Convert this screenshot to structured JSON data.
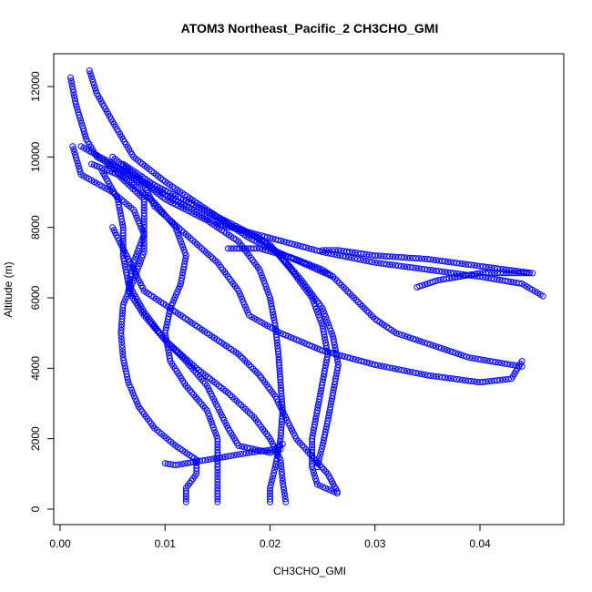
{
  "chart_data": {
    "type": "scatter",
    "title": "ATOM3 Northeast_Pacific_2 CH3CHO_GMI",
    "xlabel": "CH3CHO_GMI",
    "ylabel": "Altitude (m)",
    "xlim": [
      0,
      0.048
    ],
    "ylim": [
      0,
      12500
    ],
    "xticks": [
      "0.00",
      "0.01",
      "0.02",
      "0.03",
      "0.04"
    ],
    "yticks": [
      "0",
      "2000",
      "4000",
      "6000",
      "8000",
      "10000",
      "12000"
    ],
    "xtick_values": [
      0,
      0.01,
      0.02,
      0.03,
      0.04
    ],
    "ytick_values": [
      0,
      2000,
      4000,
      6000,
      8000,
      10000,
      12000
    ],
    "marker": "open-circle",
    "color": "#0000ff",
    "grid": false,
    "series": [
      {
        "values": [
          [
            0.0028,
            12450
          ],
          [
            0.0035,
            11800
          ],
          [
            0.005,
            11000
          ],
          [
            0.007,
            10000
          ],
          [
            0.01,
            9300
          ],
          [
            0.014,
            8500
          ],
          [
            0.018,
            7700
          ],
          [
            0.02,
            7400
          ],
          [
            0.023,
            7000
          ],
          [
            0.026,
            6600
          ],
          [
            0.028,
            6000
          ],
          [
            0.03,
            5400
          ],
          [
            0.032,
            5000
          ],
          [
            0.035,
            4700
          ],
          [
            0.039,
            4300
          ],
          [
            0.044,
            4050
          ]
        ]
      },
      {
        "values": [
          [
            0.001,
            12250
          ],
          [
            0.0015,
            11500
          ],
          [
            0.0025,
            10500
          ],
          [
            0.0035,
            10000
          ],
          [
            0.006,
            9600
          ],
          [
            0.009,
            9100
          ],
          [
            0.012,
            8600
          ],
          [
            0.015,
            8100
          ],
          [
            0.02,
            7700
          ],
          [
            0.025,
            7300
          ],
          [
            0.03,
            7000
          ],
          [
            0.035,
            6800
          ],
          [
            0.04,
            6600
          ],
          [
            0.044,
            6400
          ],
          [
            0.046,
            6050
          ]
        ]
      },
      {
        "values": [
          [
            0.002,
            10300
          ],
          [
            0.005,
            9800
          ],
          [
            0.008,
            9200
          ],
          [
            0.009,
            8600
          ],
          [
            0.012,
            7800
          ],
          [
            0.015,
            7000
          ],
          [
            0.017,
            6200
          ],
          [
            0.018,
            5500
          ],
          [
            0.021,
            5000
          ],
          [
            0.025,
            4500
          ],
          [
            0.03,
            4100
          ],
          [
            0.035,
            3800
          ],
          [
            0.04,
            3600
          ],
          [
            0.043,
            3700
          ],
          [
            0.044,
            4200
          ]
        ]
      },
      {
        "values": [
          [
            0.003,
            9800
          ],
          [
            0.0055,
            9500
          ],
          [
            0.008,
            8800
          ],
          [
            0.008,
            8000
          ],
          [
            0.008,
            7300
          ],
          [
            0.007,
            6500
          ],
          [
            0.006,
            5800
          ],
          [
            0.0058,
            5000
          ],
          [
            0.006,
            4300
          ],
          [
            0.0065,
            3600
          ],
          [
            0.0075,
            2900
          ],
          [
            0.009,
            2300
          ],
          [
            0.011,
            1800
          ],
          [
            0.013,
            1400
          ],
          [
            0.013,
            1000
          ],
          [
            0.012,
            600
          ],
          [
            0.012,
            200
          ]
        ]
      },
      {
        "values": [
          [
            0.0045,
            9800
          ],
          [
            0.007,
            9200
          ],
          [
            0.009,
            8700
          ],
          [
            0.011,
            8000
          ],
          [
            0.012,
            7200
          ],
          [
            0.0115,
            6400
          ],
          [
            0.0105,
            5700
          ],
          [
            0.01,
            5000
          ],
          [
            0.0105,
            4200
          ],
          [
            0.012,
            3500
          ],
          [
            0.014,
            2800
          ],
          [
            0.015,
            2000
          ],
          [
            0.015,
            1200
          ],
          [
            0.015,
            600
          ],
          [
            0.015,
            200
          ]
        ]
      },
      {
        "values": [
          [
            0.005,
            10000
          ],
          [
            0.0075,
            9400
          ],
          [
            0.01,
            8800
          ],
          [
            0.014,
            8200
          ],
          [
            0.017,
            7600
          ],
          [
            0.019,
            6800
          ],
          [
            0.02,
            6000
          ],
          [
            0.0205,
            5200
          ],
          [
            0.0208,
            4400
          ],
          [
            0.021,
            3600
          ],
          [
            0.0212,
            2800
          ],
          [
            0.021,
            2000
          ],
          [
            0.0205,
            1200
          ],
          [
            0.02,
            600
          ],
          [
            0.02,
            200
          ]
        ]
      },
      {
        "values": [
          [
            0.006,
            9800
          ],
          [
            0.009,
            9200
          ],
          [
            0.013,
            8600
          ],
          [
            0.017,
            8000
          ],
          [
            0.02,
            7500
          ],
          [
            0.022,
            6800
          ],
          [
            0.024,
            6000
          ],
          [
            0.025,
            5200
          ],
          [
            0.0255,
            4400
          ],
          [
            0.025,
            3600
          ],
          [
            0.0245,
            2800
          ],
          [
            0.024,
            2000
          ],
          [
            0.024,
            1200
          ],
          [
            0.0245,
            700
          ],
          [
            0.0264,
            450
          ]
        ]
      },
      {
        "values": [
          [
            0.004,
            9600
          ],
          [
            0.0055,
            8800
          ],
          [
            0.006,
            8000
          ],
          [
            0.006,
            7200
          ],
          [
            0.0065,
            6400
          ],
          [
            0.008,
            5600
          ],
          [
            0.01,
            4800
          ],
          [
            0.013,
            4000
          ],
          [
            0.016,
            3300
          ],
          [
            0.0185,
            2600
          ],
          [
            0.02,
            2000
          ],
          [
            0.021,
            1400
          ],
          [
            0.0212,
            800
          ],
          [
            0.0215,
            200
          ]
        ]
      },
      {
        "values": [
          [
            0.005,
            8000
          ],
          [
            0.006,
            7400
          ],
          [
            0.007,
            6800
          ],
          [
            0.008,
            6200
          ],
          [
            0.011,
            5600
          ],
          [
            0.014,
            5000
          ],
          [
            0.017,
            4400
          ],
          [
            0.019,
            3800
          ],
          [
            0.0205,
            3200
          ],
          [
            0.0215,
            2600
          ],
          [
            0.0225,
            2000
          ],
          [
            0.024,
            1500
          ],
          [
            0.0255,
            1000
          ],
          [
            0.0264,
            500
          ]
        ]
      },
      {
        "values": [
          [
            0.0012,
            10300
          ],
          [
            0.002,
            9500
          ],
          [
            0.005,
            9000
          ],
          [
            0.007,
            8500
          ],
          [
            0.008,
            7800
          ],
          [
            0.007,
            7000
          ],
          [
            0.0065,
            6200
          ],
          [
            0.008,
            5500
          ],
          [
            0.01,
            4800
          ],
          [
            0.012,
            4200
          ],
          [
            0.014,
            3500
          ],
          [
            0.015,
            2900
          ],
          [
            0.016,
            2300
          ],
          [
            0.017,
            1800
          ],
          [
            0.02,
            1600
          ],
          [
            0.021,
            1700
          ]
        ]
      },
      {
        "values": [
          [
            0.01,
            1300
          ],
          [
            0.011,
            1250
          ],
          [
            0.013,
            1350
          ],
          [
            0.016,
            1500
          ],
          [
            0.018,
            1600
          ],
          [
            0.0205,
            1700
          ],
          [
            0.0212,
            1850
          ]
        ]
      },
      {
        "values": [
          [
            0.025,
            7350
          ],
          [
            0.0265,
            7350
          ],
          [
            0.03,
            7200
          ],
          [
            0.035,
            7100
          ],
          [
            0.04,
            6900
          ],
          [
            0.045,
            6700
          ],
          [
            0.04,
            6700
          ],
          [
            0.036,
            6500
          ],
          [
            0.034,
            6300
          ]
        ]
      },
      {
        "values": [
          [
            0.016,
            7400
          ],
          [
            0.019,
            7400
          ],
          [
            0.022,
            7150
          ],
          [
            0.025,
            6800
          ],
          [
            0.026,
            6600
          ]
        ]
      },
      {
        "values": [
          [
            0.015,
            8200
          ],
          [
            0.019,
            7700
          ],
          [
            0.021,
            7200
          ],
          [
            0.023,
            6500
          ],
          [
            0.025,
            5700
          ],
          [
            0.026,
            4900
          ],
          [
            0.0265,
            4100
          ],
          [
            0.026,
            3300
          ],
          [
            0.0255,
            2500
          ],
          [
            0.025,
            1800
          ],
          [
            0.0245,
            1200
          ]
        ]
      }
    ]
  }
}
